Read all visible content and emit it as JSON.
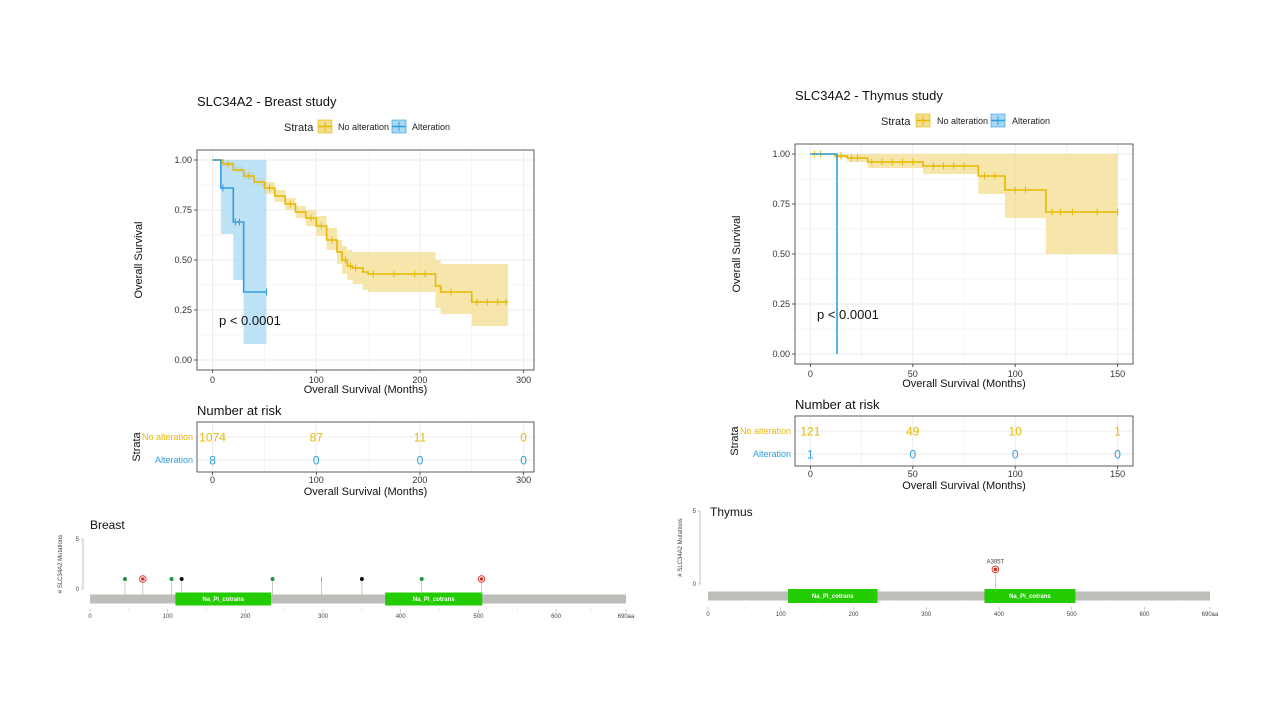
{
  "colors": {
    "no_alteration": "#E7B800",
    "alteration": "#2E9FDF",
    "no_alteration_band": "#F3DE8F",
    "alteration_band": "#A8D8F3",
    "grid": "#EBEBEB",
    "domain": "#22CC00",
    "backbone": "#BDBDBA"
  },
  "chart_data": [
    {
      "id": "breast-km",
      "type": "line",
      "title": "SLC34A2 - Breast study",
      "legend": {
        "title": "Strata",
        "entries": [
          "No alteration",
          "Alteration"
        ],
        "position": "top"
      },
      "xlabel": "Overall Survival (Months)",
      "ylabel": "Overall Survival",
      "xlim": [
        -15,
        310
      ],
      "ylim": [
        -0.05,
        1.05
      ],
      "xticks": [
        0,
        100,
        200,
        300
      ],
      "yticks": [
        "0.00",
        "0.25",
        "0.50",
        "0.75",
        "1.00"
      ],
      "grid": true,
      "pvalue": "p < 0.0001",
      "series": [
        {
          "name": "No alteration",
          "x": [
            0,
            10,
            20,
            30,
            40,
            50,
            60,
            70,
            80,
            90,
            100,
            110,
            120,
            125,
            130,
            135,
            145,
            150,
            160,
            170,
            180,
            190,
            200,
            210,
            215,
            220,
            245,
            250,
            285
          ],
          "y": [
            1.0,
            0.98,
            0.95,
            0.92,
            0.89,
            0.86,
            0.82,
            0.78,
            0.74,
            0.71,
            0.67,
            0.6,
            0.54,
            0.5,
            0.47,
            0.46,
            0.44,
            0.43,
            0.43,
            0.43,
            0.43,
            0.43,
            0.43,
            0.43,
            0.37,
            0.34,
            0.34,
            0.29,
            0.29
          ],
          "lower": [
            1.0,
            0.97,
            0.94,
            0.9,
            0.87,
            0.83,
            0.79,
            0.75,
            0.71,
            0.67,
            0.62,
            0.55,
            0.48,
            0.43,
            0.4,
            0.38,
            0.35,
            0.34,
            0.34,
            0.34,
            0.34,
            0.34,
            0.34,
            0.34,
            0.26,
            0.23,
            0.23,
            0.17,
            0.17
          ],
          "upper": [
            1.0,
            0.99,
            0.97,
            0.94,
            0.91,
            0.89,
            0.85,
            0.81,
            0.77,
            0.75,
            0.72,
            0.66,
            0.6,
            0.57,
            0.55,
            0.54,
            0.54,
            0.54,
            0.54,
            0.54,
            0.54,
            0.54,
            0.54,
            0.54,
            0.5,
            0.48,
            0.48,
            0.48,
            0.48
          ],
          "censor_x": [
            15,
            35,
            55,
            75,
            95,
            105,
            115,
            128,
            133,
            138,
            155,
            175,
            195,
            205,
            230,
            255,
            265,
            275,
            283
          ]
        },
        {
          "name": "Alteration",
          "x": [
            0,
            8,
            20,
            30,
            52
          ],
          "y": [
            1.0,
            0.86,
            0.69,
            0.34,
            0.34
          ],
          "lower": [
            1.0,
            0.63,
            0.4,
            0.08,
            0.08
          ],
          "upper": [
            1.0,
            1.0,
            1.0,
            1.0,
            1.0
          ],
          "censor_x": [
            10,
            22,
            26,
            52
          ]
        }
      ],
      "risk_table": {
        "title": "Number at risk",
        "ylabel": "Strata",
        "xlabel": "Overall Survival (Months)",
        "times": [
          0,
          100,
          200,
          300
        ],
        "rows": [
          {
            "label": "No alteration",
            "values": [
              "1074",
              "87",
              "11",
              "0"
            ]
          },
          {
            "label": "Alteration",
            "values": [
              "8",
              "0",
              "0",
              "0"
            ]
          }
        ]
      }
    },
    {
      "id": "thymus-km",
      "type": "line",
      "title": "SLC34A2 - Thymus study",
      "legend": {
        "title": "Strata",
        "entries": [
          "No alteration",
          "Alteration"
        ],
        "position": "top"
      },
      "xlabel": "Overall Survival (Months)",
      "ylabel": "Overall Survival",
      "xlim": [
        -7.5,
        157.5
      ],
      "ylim": [
        -0.05,
        1.05
      ],
      "xticks": [
        0,
        50,
        100,
        150
      ],
      "yticks": [
        "0.00",
        "0.25",
        "0.50",
        "0.75",
        "1.00"
      ],
      "grid": true,
      "pvalue": "p < 0.0001",
      "series": [
        {
          "name": "No alteration",
          "x": [
            0,
            12,
            18,
            28,
            55,
            82,
            95,
            115,
            150
          ],
          "y": [
            1.0,
            0.99,
            0.98,
            0.96,
            0.94,
            0.89,
            0.82,
            0.71,
            0.71
          ],
          "lower": [
            1.0,
            0.98,
            0.96,
            0.93,
            0.9,
            0.8,
            0.68,
            0.5,
            0.5
          ],
          "upper": [
            1.0,
            1.0,
            1.0,
            1.0,
            1.0,
            1.0,
            1.0,
            1.0,
            1.0
          ],
          "censor_x": [
            2,
            5,
            15,
            20,
            23,
            30,
            35,
            40,
            45,
            50,
            60,
            65,
            70,
            75,
            85,
            90,
            100,
            105,
            118,
            122,
            128,
            140,
            150
          ]
        },
        {
          "name": "Alteration",
          "x": [
            0,
            13,
            13
          ],
          "y": [
            1.0,
            1.0,
            0.0
          ],
          "censor_x": []
        }
      ],
      "risk_table": {
        "title": "Number at risk",
        "ylabel": "Strata",
        "xlabel": "Overall Survival (Months)",
        "times": [
          0,
          50,
          100,
          150
        ],
        "rows": [
          {
            "label": "No alteration",
            "values": [
              "121",
              "49",
              "10",
              "1"
            ]
          },
          {
            "label": "Alteration",
            "values": [
              "1",
              "0",
              "0",
              "0"
            ]
          }
        ]
      }
    },
    {
      "id": "breast-lollipop",
      "type": "scatter",
      "title": "Breast",
      "ylabel": "# SLC34A2 Mutations",
      "yticks": [
        "0",
        "5"
      ],
      "ylim": [
        0,
        5
      ],
      "protein_length": 690,
      "xticks": [
        "0",
        "100",
        "200",
        "300",
        "400",
        "500",
        "600",
        "690aa"
      ],
      "xtick_values": [
        0,
        100,
        200,
        300,
        400,
        500,
        600,
        690
      ],
      "domains": [
        {
          "label": "Na_Pi_cotrans",
          "start": 110,
          "end": 233
        },
        {
          "label": "Na_Pi_cotrans",
          "start": 380,
          "end": 505
        }
      ],
      "mutations": [
        {
          "pos": 45,
          "count": 1,
          "color": "#1A9641"
        },
        {
          "pos": 68,
          "count": 1,
          "color": "#D7301F",
          "ring": true
        },
        {
          "pos": 105,
          "count": 1,
          "color": "#1A9641"
        },
        {
          "pos": 118,
          "count": 1,
          "color": "#111111"
        },
        {
          "pos": 235,
          "count": 1,
          "color": "#1A9641"
        },
        {
          "pos": 298,
          "count": 1,
          "color": "#888888",
          "tiny": true
        },
        {
          "pos": 350,
          "count": 1,
          "color": "#111111"
        },
        {
          "pos": 427,
          "count": 1,
          "color": "#1A9641"
        },
        {
          "pos": 504,
          "count": 1,
          "color": "#D7301F",
          "ring": true
        }
      ]
    },
    {
      "id": "thymus-lollipop",
      "type": "scatter",
      "title": "Thymus",
      "ylabel": "# SLC34A2 Mutations",
      "yticks": [
        "0",
        "5"
      ],
      "ylim": [
        0,
        5
      ],
      "protein_length": 690,
      "xticks": [
        "0",
        "100",
        "200",
        "300",
        "400",
        "500",
        "600",
        "690aa"
      ],
      "xtick_values": [
        0,
        100,
        200,
        300,
        400,
        500,
        600,
        690
      ],
      "domains": [
        {
          "label": "Na_Pi_cotrans",
          "start": 110,
          "end": 233
        },
        {
          "label": "Na_Pi_cotrans",
          "start": 380,
          "end": 505
        }
      ],
      "mutations": [
        {
          "pos": 395,
          "count": 1,
          "color": "#D7301F",
          "ring": true,
          "label": "A395T"
        }
      ]
    }
  ]
}
